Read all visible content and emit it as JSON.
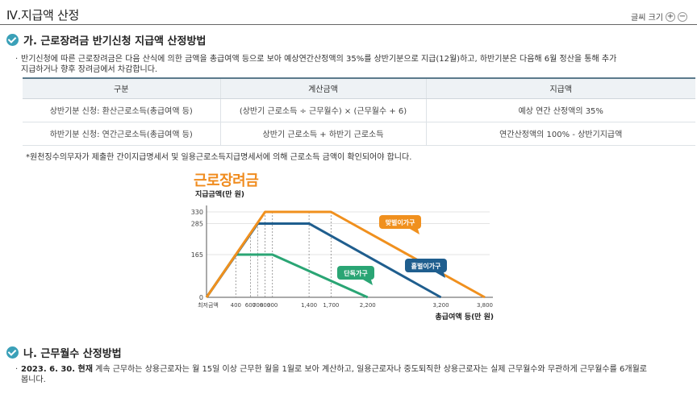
{
  "header": {
    "title": "Ⅳ.지급액 산정",
    "font_size_label": "글씨 크기",
    "font_plus": "+",
    "font_minus": "−"
  },
  "section_a": {
    "heading": "가. 근로장려금 반기신청 지급액 산정방법",
    "description_line1": "반기신청에 따른 근로장려금은 다음 산식에 의한 금액을 총급여액 등으로 보아 예상연간산정액의 35%를 상반기분으로 지급(12월)하고, 하반기분은 다음해 6월 정산을 통해 추가",
    "description_line2": "지급하거나 향후 장려금에서 차감합니다.",
    "table": {
      "headers": [
        "구분",
        "계산금액",
        "지급액"
      ],
      "rows": [
        [
          "상반기분 신청: 환산근로소득(총급여액 등)",
          "(상반기 근로소득 ÷ 근무월수) × (근무월수 + 6)",
          "예상 연간 산정액의 35%"
        ],
        [
          "하반기분 신청: 연간근로소득(총급여액 등)",
          "상반기 근로소득 + 하반기 근로소득",
          "연간산정액의 100% - 상반기지급액"
        ]
      ]
    },
    "note": "*원천징수의무자가 제출한 간이지급명세서 및 일용근로소득지급명세서에 의해 근로소득 금액이 확인되어야 합니다."
  },
  "chart_data": {
    "type": "line",
    "title": "근로장려금",
    "ylabel": "지급금액(만 원)",
    "xlabel": "총급여액 등(만 원)",
    "x_tick_labels": [
      "최저금액",
      "400",
      "600",
      "700",
      "800",
      "900",
      "1,400",
      "1,700",
      "2,200",
      "3,200",
      "3,800"
    ],
    "y_tick_labels": [
      "0",
      "165",
      "285",
      "330"
    ],
    "ylim": [
      0,
      330
    ],
    "series": [
      {
        "name": "단독가구",
        "color": "#2aa574",
        "x": [
          0,
          400,
          900,
          2200
        ],
        "y": [
          0,
          165,
          165,
          0
        ]
      },
      {
        "name": "홑벌이가구",
        "color": "#1f5e8e",
        "x": [
          0,
          700,
          1400,
          3200
        ],
        "y": [
          0,
          285,
          285,
          0
        ]
      },
      {
        "name": "맞벌이가구",
        "color": "#f0901e",
        "x": [
          0,
          800,
          1700,
          3800
        ],
        "y": [
          0,
          330,
          330,
          0
        ]
      }
    ]
  },
  "section_b": {
    "heading": "나. 근무월수 산정방법",
    "desc_bold": "2023. 6. 30. 현재",
    "desc_rest": " 계속 근무하는 상용근로자는 월 15일 이상 근무한 월을 1월로 보아 계산하고, 일용근로자나 중도퇴직한 상용근로자는 실제 근무월수와 무관하게 근무월수를 6개월로",
    "desc_line2": "봅니다."
  }
}
